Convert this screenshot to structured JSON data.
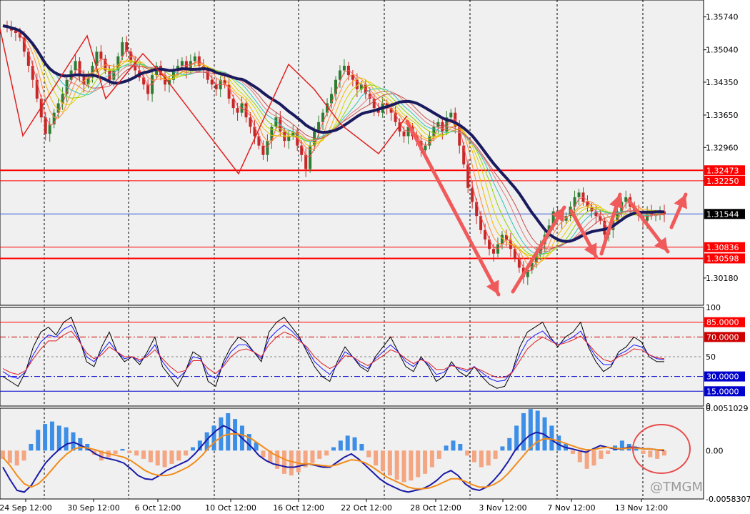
{
  "chart_data": {
    "type": "candlestick",
    "symbol_watermark": "@TMGM",
    "colors": {
      "background": "#ffffff",
      "plot_bg": "#f0f0f0",
      "bull": "#2e7d32",
      "bear": "#c62828",
      "grid": "#000000",
      "level_red": "#ff0000",
      "current_blue": "#3a5bd9",
      "trend_line": "#1a1a5e",
      "arrow": "#f05a5a",
      "macd_pos": "#3c8ee6",
      "macd_neg": "#f4a582",
      "macd_line": "#1a1aa8",
      "signal_line": "#f28c1b"
    },
    "time_labels": [
      "24 Sep 12:00",
      "30 Sep 12:00",
      "6 Oct 12:00",
      "10 Oct 12:00",
      "16 Oct 12:00",
      "22 Oct 12:00",
      "28 Oct 12:00",
      "3 Nov 12:00",
      "7 Nov 12:00",
      "13 Nov 12:00"
    ],
    "price_panel": {
      "y_min": 1.296,
      "y_max": 1.361,
      "tick_labels": [
        "1.35740",
        "1.35040",
        "1.34350",
        "1.33650",
        "1.32960",
        "1.32250",
        "1.30180"
      ],
      "tick_values": [
        1.3574,
        1.3504,
        1.3435,
        1.3365,
        1.3296,
        1.3225,
        1.3018
      ],
      "levels": [
        {
          "label": "1.32473",
          "value": 1.32473,
          "color": "#ff0000",
          "width": 2
        },
        {
          "label": "1.32250",
          "value": 1.3225,
          "color": "#ff0000",
          "width": 1
        },
        {
          "label": "1.30836",
          "value": 1.30836,
          "color": "#ff0000",
          "width": 1
        },
        {
          "label": "1.30598",
          "value": 1.30598,
          "color": "#ff0000",
          "width": 2
        }
      ],
      "current_price": {
        "label": "1.31544",
        "value": 1.31544
      },
      "closes": [
        1.3555,
        1.3552,
        1.3545,
        1.354,
        1.353,
        1.35,
        1.347,
        1.344,
        1.34,
        1.336,
        1.3325,
        1.3345,
        1.337,
        1.339,
        1.341,
        1.344,
        1.346,
        1.348,
        1.345,
        1.343,
        1.3445,
        1.347,
        1.35,
        1.3485,
        1.346,
        1.344,
        1.346,
        1.349,
        1.352,
        1.35,
        1.348,
        1.346,
        1.3445,
        1.343,
        1.341,
        1.345,
        1.347,
        1.345,
        1.343,
        1.344,
        1.346,
        1.347,
        1.348,
        1.346,
        1.348,
        1.349,
        1.347,
        1.346,
        1.344,
        1.343,
        1.342,
        1.344,
        1.343,
        1.34,
        1.338,
        1.337,
        1.339,
        1.336,
        1.334,
        1.332,
        1.33,
        1.328,
        1.331,
        1.334,
        1.336,
        1.333,
        1.331,
        1.332,
        1.333,
        1.33,
        1.328,
        1.325,
        1.33,
        1.333,
        1.335,
        1.337,
        1.339,
        1.341,
        1.344,
        1.346,
        1.347,
        1.345,
        1.344,
        1.342,
        1.343,
        1.341,
        1.34,
        1.338,
        1.337,
        1.339,
        1.338,
        1.337,
        1.335,
        1.333,
        1.332,
        1.334,
        1.332,
        1.331,
        1.329,
        1.33,
        1.332,
        1.334,
        1.335,
        1.333,
        1.336,
        1.337,
        1.334,
        1.33,
        1.326,
        1.321,
        1.318,
        1.315,
        1.312,
        1.31,
        1.308,
        1.307,
        1.309,
        1.311,
        1.31,
        1.308,
        1.306,
        1.304,
        1.302,
        1.3035,
        1.305,
        1.307,
        1.309,
        1.311,
        1.313,
        1.316,
        1.315,
        1.314,
        1.315,
        1.317,
        1.319,
        1.32,
        1.318,
        1.317,
        1.316,
        1.315,
        1.314,
        1.311,
        1.312,
        1.314,
        1.316,
        1.318,
        1.319,
        1.317,
        1.316,
        1.315,
        1.314,
        1.316,
        1.315,
        1.3155,
        1.316,
        1.3154
      ]
    },
    "stoch_panel": {
      "y_min": 0,
      "y_max": 100,
      "tick_labels": [
        "100",
        "50",
        "0"
      ],
      "tick_values": [
        100,
        50,
        0
      ],
      "levels": [
        {
          "label": "85.0000",
          "value": 85,
          "color": "#ff0000",
          "style": "solid"
        },
        {
          "label": "70.0000",
          "value": 70,
          "color": "#cc0000",
          "style": "dashdot"
        },
        {
          "label": "30.0000",
          "value": 30,
          "color": "#0000cc",
          "style": "dashdot"
        },
        {
          "label": "15.0000",
          "value": 15,
          "color": "#0000cc",
          "style": "solid"
        }
      ],
      "series": [
        {
          "color": "#000000",
          "values": [
            30,
            25,
            20,
            35,
            60,
            75,
            80,
            72,
            85,
            90,
            70,
            45,
            40,
            60,
            75,
            55,
            45,
            50,
            42,
            55,
            70,
            40,
            30,
            20,
            35,
            55,
            50,
            25,
            20,
            45,
            60,
            70,
            65,
            55,
            45,
            75,
            85,
            90,
            80,
            70,
            55,
            40,
            30,
            25,
            45,
            60,
            50,
            40,
            35,
            50,
            60,
            70,
            55,
            40,
            35,
            50,
            40,
            25,
            30,
            45,
            35,
            30,
            40,
            30,
            22,
            18,
            20,
            35,
            60,
            75,
            80,
            85,
            70,
            60,
            70,
            75,
            85,
            60,
            45,
            35,
            40,
            55,
            60,
            70,
            65,
            50,
            45,
            45
          ]
        },
        {
          "color": "#1a1aff",
          "values": [
            35,
            30,
            28,
            35,
            52,
            65,
            72,
            70,
            78,
            82,
            68,
            50,
            45,
            55,
            65,
            55,
            48,
            50,
            45,
            52,
            62,
            45,
            35,
            28,
            35,
            50,
            48,
            32,
            28,
            42,
            55,
            62,
            62,
            55,
            48,
            68,
            76,
            82,
            76,
            68,
            58,
            45,
            38,
            32,
            42,
            55,
            50,
            42,
            38,
            48,
            55,
            62,
            55,
            45,
            40,
            48,
            42,
            32,
            34,
            42,
            38,
            35,
            40,
            34,
            28,
            25,
            26,
            35,
            52,
            66,
            72,
            76,
            68,
            62,
            66,
            70,
            76,
            62,
            50,
            42,
            42,
            52,
            56,
            62,
            60,
            52,
            48,
            47
          ]
        },
        {
          "color": "#e02020",
          "values": [
            38,
            34,
            32,
            36,
            48,
            58,
            66,
            66,
            72,
            76,
            66,
            54,
            48,
            52,
            60,
            55,
            50,
            50,
            47,
            50,
            57,
            48,
            40,
            34,
            36,
            46,
            46,
            38,
            33,
            40,
            50,
            56,
            58,
            55,
            50,
            62,
            70,
            75,
            72,
            66,
            60,
            50,
            43,
            38,
            42,
            51,
            50,
            45,
            41,
            46,
            51,
            57,
            54,
            48,
            43,
            47,
            44,
            37,
            37,
            41,
            39,
            37,
            39,
            36,
            32,
            29,
            29,
            34,
            46,
            58,
            65,
            70,
            66,
            62,
            64,
            67,
            71,
            63,
            54,
            47,
            45,
            50,
            53,
            58,
            57,
            52,
            49,
            48
          ]
        }
      ]
    },
    "macd_panel": {
      "y_min": -0.0058307,
      "y_max": 0.0051029,
      "tick_labels": [
        "0.0051029",
        "0.00",
        "-0.0058307"
      ],
      "tick_values": [
        0.0051029,
        0,
        -0.0058307
      ],
      "histogram": [
        -0.001,
        -0.0015,
        -0.0018,
        -0.0012,
        0.0008,
        0.0025,
        0.0032,
        0.0035,
        0.003,
        0.0028,
        0.0022,
        0.0015,
        0.0008,
        -0.0005,
        -0.0012,
        -0.0008,
        -0.0004,
        0.0002,
        -0.0003,
        -0.0006,
        -0.001,
        -0.0014,
        -0.0018,
        -0.002,
        -0.0016,
        -0.0012,
        -0.0006,
        0.0004,
        0.0012,
        0.0022,
        0.003,
        0.004,
        0.0045,
        0.0038,
        0.003,
        0.002,
        0.001,
        -0.0008,
        -0.0015,
        -0.0022,
        -0.0028,
        -0.003,
        -0.0026,
        -0.002,
        -0.0015,
        -0.001,
        -0.0006,
        0.0004,
        0.0012,
        0.0018,
        0.0016,
        0.0008,
        -0.0008,
        -0.0018,
        -0.0025,
        -0.003,
        -0.0035,
        -0.0038,
        -0.0036,
        -0.0032,
        -0.0028,
        -0.002,
        -0.001,
        0.0006,
        0.0012,
        0.0008,
        -0.0006,
        -0.0014,
        -0.002,
        -0.0018,
        -0.001,
        0.0005,
        0.0015,
        0.003,
        0.0045,
        0.005,
        0.0048,
        0.004,
        0.003,
        0.0018,
        0.0008,
        -0.0004,
        -0.0014,
        -0.0022,
        -0.0018,
        -0.001,
        -0.0004,
        0.0006,
        0.0012,
        0.0008,
        0.0004,
        -0.0004,
        -0.0008,
        -0.001,
        -0.0006
      ],
      "macd_line": [
        -0.002,
        -0.0035,
        -0.0048,
        -0.005,
        -0.0042,
        -0.0028,
        -0.0015,
        -0.0006,
        0.0002,
        0.0008,
        0.001,
        0.0006,
        0.0002,
        -0.0004,
        -0.0008,
        -0.001,
        -0.0012,
        -0.0015,
        -0.0022,
        -0.003,
        -0.0034,
        -0.0035,
        -0.003,
        -0.0024,
        -0.002,
        -0.0016,
        -0.0012,
        -0.0004,
        0.0006,
        0.0016,
        0.0024,
        0.003,
        0.0026,
        0.002,
        0.0012,
        0.0004,
        -0.0006,
        -0.0012,
        -0.0016,
        -0.0018,
        -0.002,
        -0.002,
        -0.0018,
        -0.0016,
        -0.0018,
        -0.002,
        -0.002,
        -0.0014,
        -0.0008,
        -0.0004,
        -0.001,
        -0.0018,
        -0.0026,
        -0.0034,
        -0.004,
        -0.0044,
        -0.0048,
        -0.005,
        -0.0048,
        -0.0046,
        -0.0042,
        -0.0036,
        -0.0028,
        -0.0024,
        -0.003,
        -0.004,
        -0.0046,
        -0.0048,
        -0.0044,
        -0.0036,
        -0.0026,
        -0.0014,
        0.0,
        0.001,
        0.0018,
        0.0022,
        0.002,
        0.0014,
        0.0008,
        0.0004,
        0.0002,
        0.0,
        -0.0002,
        0.0002,
        0.0006,
        0.0004,
        0.0002,
        0.0002,
        0.0004,
        0.0004,
        0.0002,
        0.0002,
        0.0001,
        0.0
      ],
      "signal_line": [
        -0.0008,
        -0.0018,
        -0.003,
        -0.004,
        -0.0044,
        -0.004,
        -0.0032,
        -0.0022,
        -0.0012,
        -0.0004,
        0.0002,
        0.0004,
        0.0003,
        0.0001,
        -0.0002,
        -0.0004,
        -0.0006,
        -0.0008,
        -0.0012,
        -0.0018,
        -0.0024,
        -0.0028,
        -0.003,
        -0.003,
        -0.0028,
        -0.0024,
        -0.002,
        -0.0014,
        -0.0006,
        0.0004,
        0.0012,
        0.0018,
        0.002,
        0.002,
        0.0018,
        0.0014,
        0.0008,
        0.0002,
        -0.0004,
        -0.0008,
        -0.0012,
        -0.0014,
        -0.0016,
        -0.0016,
        -0.0017,
        -0.0018,
        -0.0019,
        -0.0017,
        -0.0014,
        -0.0011,
        -0.0012,
        -0.0015,
        -0.002,
        -0.0026,
        -0.0032,
        -0.0036,
        -0.004,
        -0.0044,
        -0.0046,
        -0.0046,
        -0.0045,
        -0.0042,
        -0.0038,
        -0.0034,
        -0.0034,
        -0.0037,
        -0.0041,
        -0.0044,
        -0.0044,
        -0.0041,
        -0.0036,
        -0.0028,
        -0.0018,
        -0.0008,
        0.0002,
        0.001,
        0.0014,
        0.0014,
        0.0012,
        0.0009,
        0.0006,
        0.0003,
        0.0001,
        0.0001,
        0.0003,
        0.0004,
        0.0003,
        0.0002,
        0.0003,
        0.0003,
        0.0002,
        0.0002,
        0.0001,
        0.0001
      ]
    }
  }
}
